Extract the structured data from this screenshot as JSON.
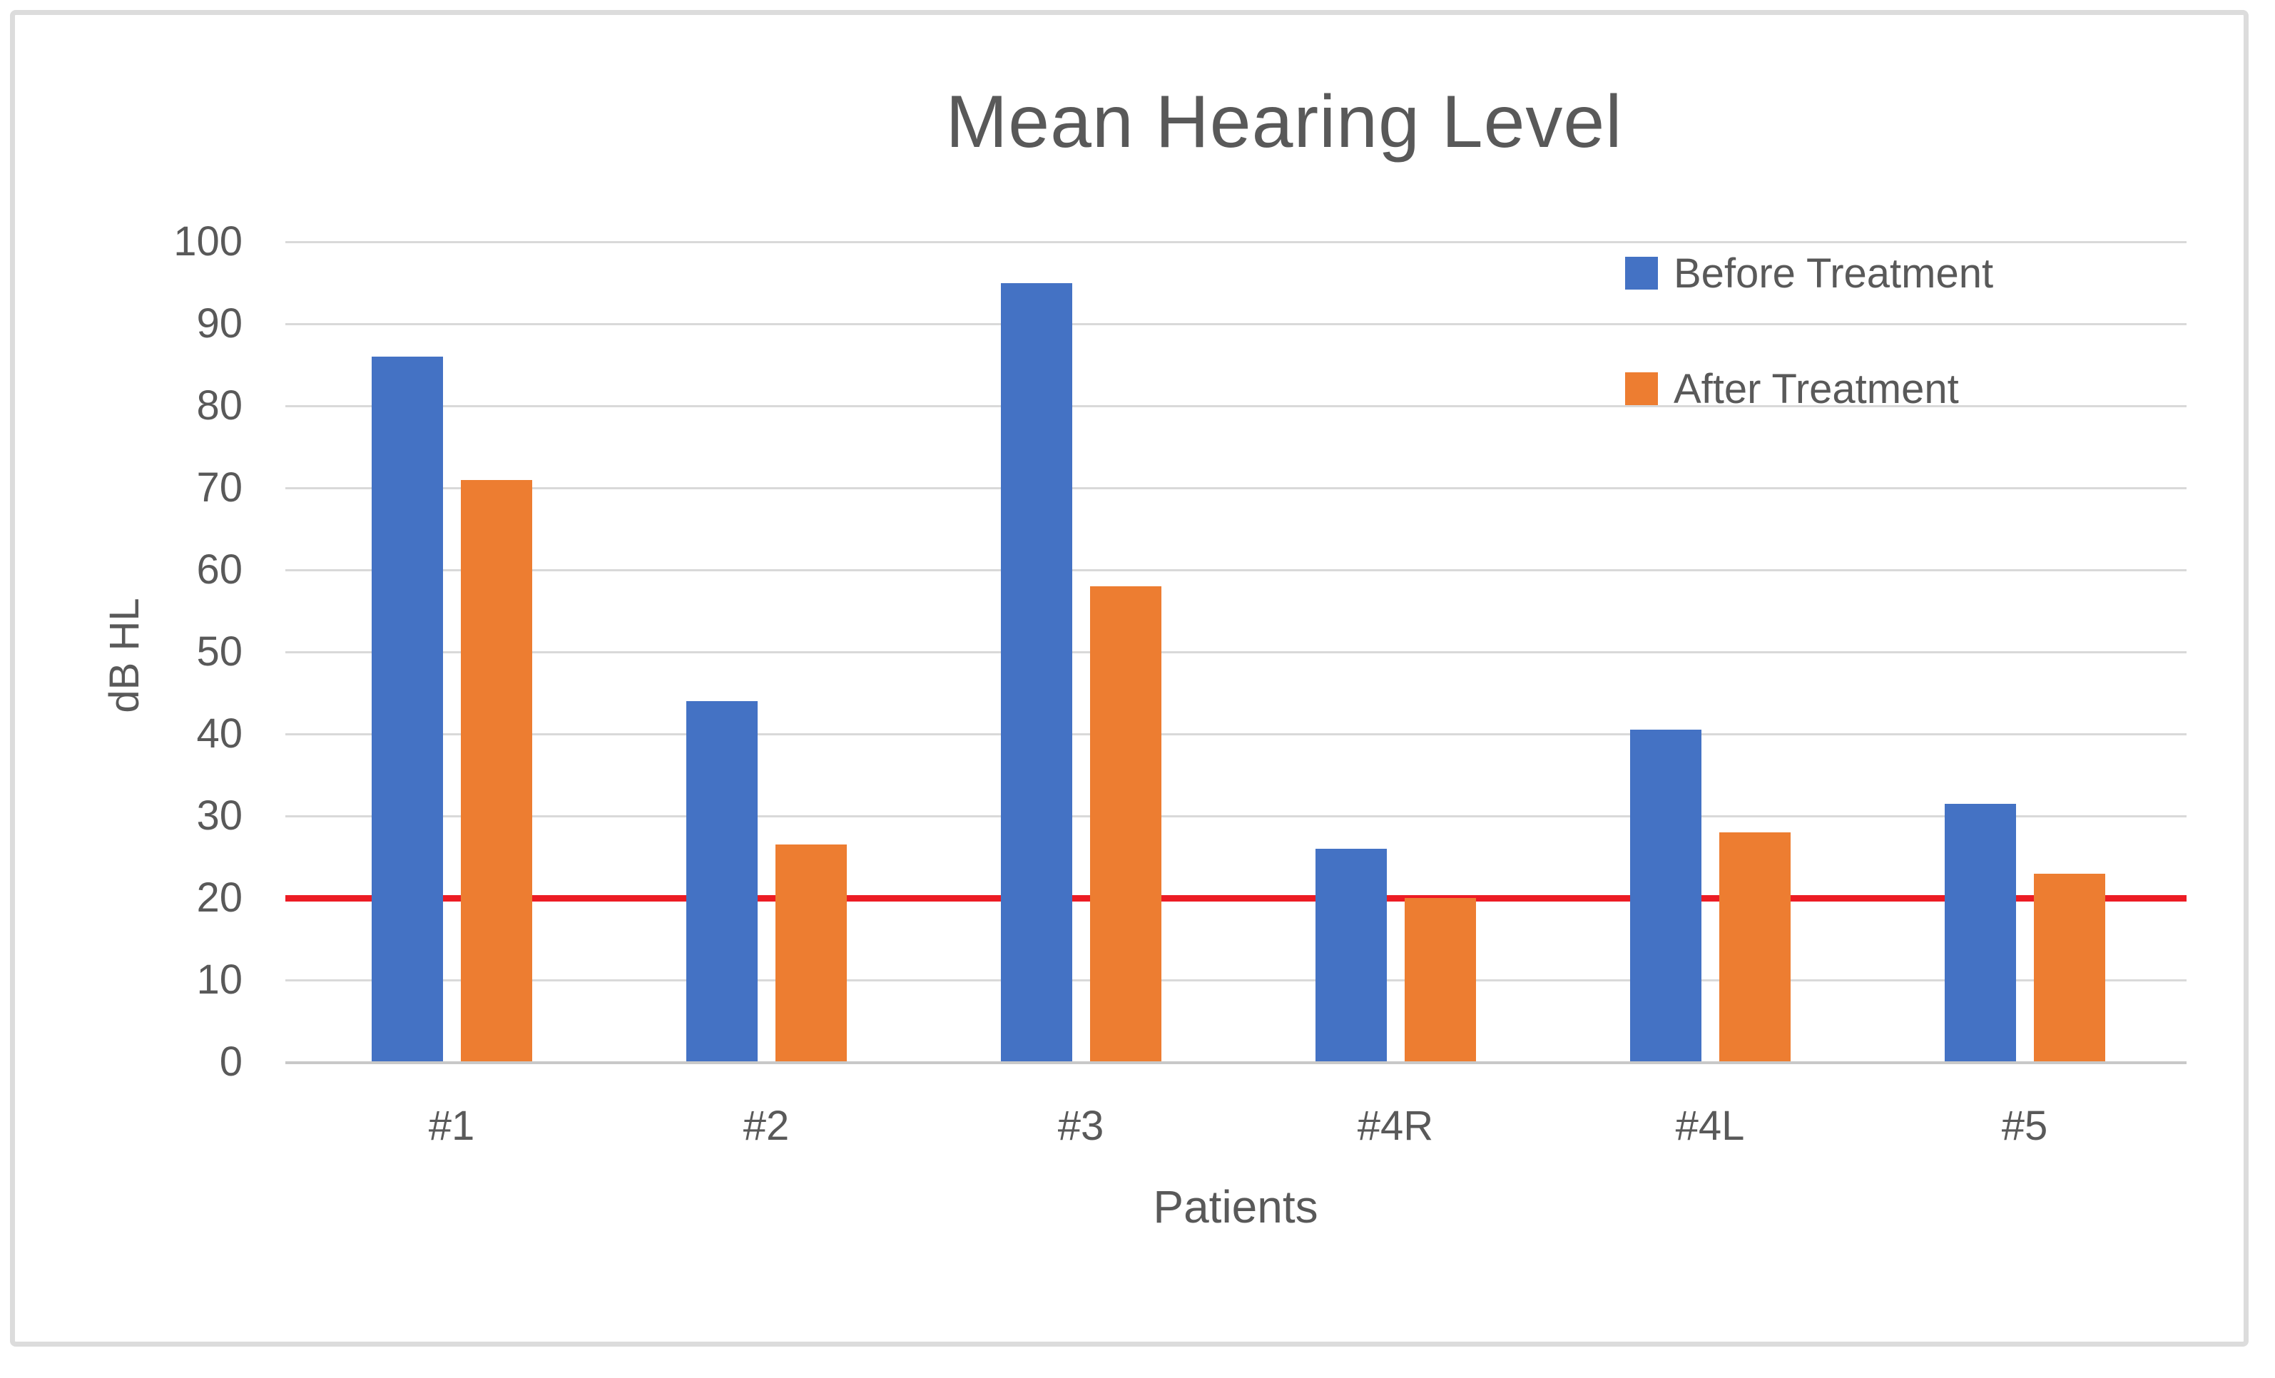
{
  "title": "Mean Hearing Level",
  "chart_data": {
    "type": "bar",
    "title": "Mean Hearing Level",
    "categories": [
      "#1",
      "#2",
      "#3",
      "#4R",
      "#4L",
      "#5"
    ],
    "series": [
      {
        "name": "Before Treatment",
        "color": "#4472C4",
        "values": [
          86,
          44,
          95,
          26,
          40.5,
          31.5
        ]
      },
      {
        "name": "After Treatment",
        "color": "#ED7D31",
        "values": [
          71,
          26.5,
          58,
          20,
          28,
          23
        ]
      }
    ],
    "reference_line": {
      "value": 20,
      "color": "#EC1C24"
    },
    "xlabel": "Patients",
    "ylabel": "dB HL",
    "ylim": [
      0,
      100
    ],
    "ytick_step": 10,
    "yticks": [
      0,
      10,
      20,
      30,
      40,
      50,
      60,
      70,
      80,
      90,
      100
    ],
    "grid": true,
    "gridline_color": "#D9D9D9",
    "axis_text_color": "#595959",
    "legend_position": "top-right"
  }
}
